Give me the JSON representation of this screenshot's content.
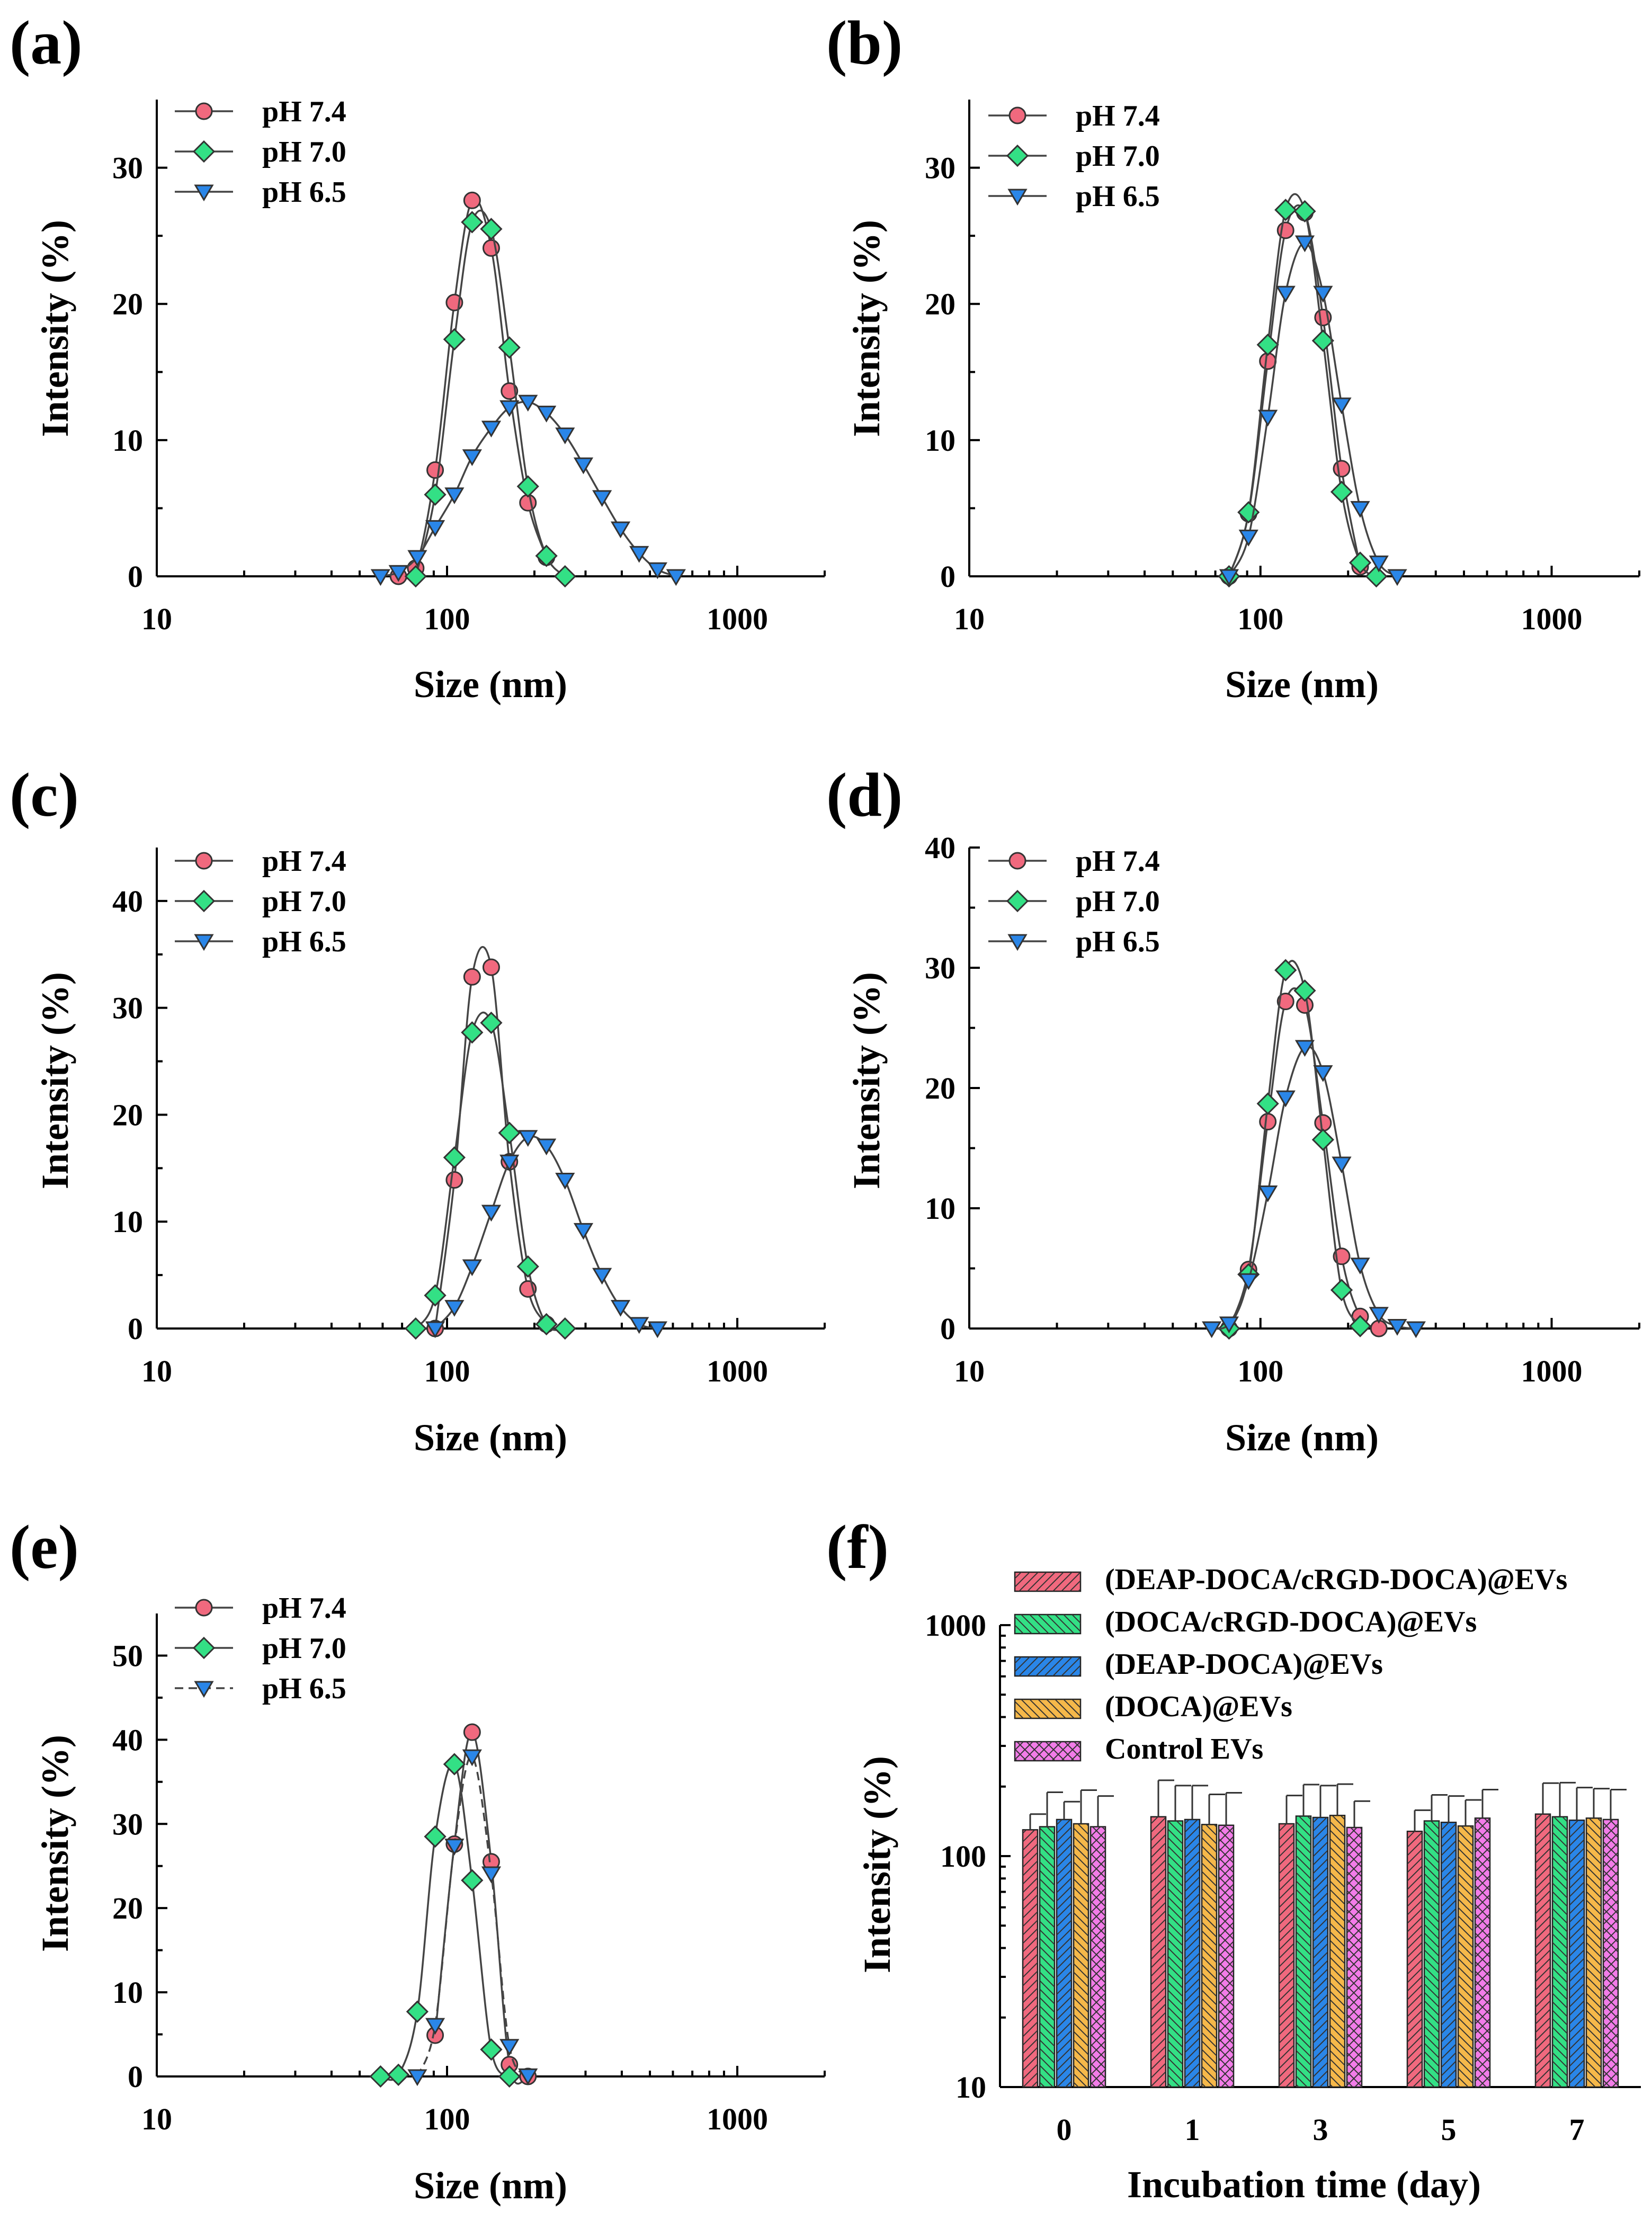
{
  "colors": {
    "pH 7.4": "#f0697e",
    "pH 7.0": "#33e085",
    "pH 6.5": "#2a86e8",
    "bars": [
      "#f0697e",
      "#33e085",
      "#2a86e8",
      "#f5b84a",
      "#f27ce8"
    ]
  },
  "chart_data": [
    {
      "panel": "(a)",
      "type": "line",
      "xscale": "log",
      "xlim": [
        10,
        2000
      ],
      "ylim": [
        0,
        35
      ],
      "xticks": [
        10,
        100,
        1000
      ],
      "xtick_labels": [
        "10",
        "100",
        "1000"
      ],
      "yticks": [
        0,
        10,
        20,
        30
      ],
      "ytick_labels": [
        "0",
        "10",
        "20",
        "30"
      ],
      "xlabel": "Size (nm)",
      "ylabel": "Intensity (%)",
      "series": [
        {
          "name": "pH 7.4",
          "marker": "circle",
          "x": [
            68,
            78,
            91,
            106,
            122,
            142,
            164,
            190,
            220
          ],
          "y": [
            0,
            0.6,
            7.8,
            20.1,
            27.6,
            24.1,
            13.6,
            5.4,
            1.4
          ]
        },
        {
          "name": "pH 7.0",
          "marker": "diamond",
          "x": [
            78,
            91,
            106,
            122,
            142,
            164,
            190,
            220,
            255
          ],
          "y": [
            0,
            6.0,
            17.4,
            26.0,
            25.5,
            16.8,
            6.6,
            1.5,
            0
          ]
        },
        {
          "name": "pH 6.5",
          "marker": "triangle-down",
          "x": [
            59,
            68,
            79,
            91,
            106,
            122,
            142,
            164,
            190,
            220,
            255,
            295,
            342,
            396,
            459,
            531,
            615
          ],
          "y": [
            0,
            0.3,
            1.4,
            3.6,
            6.0,
            8.8,
            10.9,
            12.4,
            12.8,
            12.0,
            10.4,
            8.2,
            5.8,
            3.5,
            1.7,
            0.5,
            0
          ]
        }
      ]
    },
    {
      "panel": "(b)",
      "type": "line",
      "xscale": "log",
      "xlim": [
        10,
        2000
      ],
      "ylim": [
        0,
        35
      ],
      "xticks": [
        10,
        100,
        1000
      ],
      "xtick_labels": [
        "10",
        "100",
        "1000"
      ],
      "yticks": [
        0,
        10,
        20,
        30
      ],
      "ytick_labels": [
        "0",
        "10",
        "20",
        "30"
      ],
      "xlabel": "Size (nm)",
      "ylabel": "Intensity (%)",
      "series": [
        {
          "name": "pH 7.4",
          "marker": "circle",
          "x": [
            78,
            91,
            106,
            122,
            142,
            164,
            190,
            220
          ],
          "y": [
            0,
            4.6,
            15.8,
            25.4,
            26.7,
            19.0,
            7.9,
            0.7
          ]
        },
        {
          "name": "pH 7.0",
          "marker": "diamond",
          "x": [
            78,
            91,
            106,
            122,
            142,
            164,
            190,
            220,
            250
          ],
          "y": [
            0,
            4.7,
            17.0,
            26.9,
            26.8,
            17.3,
            6.2,
            1.0,
            0
          ]
        },
        {
          "name": "pH 6.5",
          "marker": "triangle-down",
          "x": [
            78,
            91,
            106,
            122,
            142,
            164,
            190,
            220,
            255,
            295
          ],
          "y": [
            0,
            2.9,
            11.7,
            20.8,
            24.5,
            20.8,
            12.6,
            5.0,
            1.0,
            0
          ]
        }
      ]
    },
    {
      "panel": "(c)",
      "type": "line",
      "xscale": "log",
      "xlim": [
        10,
        2000
      ],
      "ylim": [
        0,
        45
      ],
      "xticks": [
        10,
        100,
        1000
      ],
      "xtick_labels": [
        "10",
        "100",
        "1000"
      ],
      "yticks": [
        0,
        10,
        20,
        30,
        40
      ],
      "ytick_labels": [
        "0",
        "10",
        "20",
        "30",
        "40"
      ],
      "xlabel": "Size (nm)",
      "ylabel": "Intensity (%)",
      "series": [
        {
          "name": "pH 7.4",
          "marker": "circle",
          "x": [
            91,
            106,
            122,
            142,
            164,
            190,
            220
          ],
          "y": [
            0,
            13.9,
            32.9,
            33.8,
            15.6,
            3.7,
            0.4
          ]
        },
        {
          "name": "pH 7.0",
          "marker": "diamond",
          "x": [
            78,
            91,
            106,
            122,
            142,
            164,
            190,
            220,
            255
          ],
          "y": [
            0,
            3.1,
            16.0,
            27.7,
            28.6,
            18.3,
            5.8,
            0.4,
            0
          ]
        },
        {
          "name": "pH 6.5",
          "marker": "triangle-down",
          "x": [
            91,
            106,
            122,
            142,
            164,
            190,
            220,
            255,
            295,
            342,
            396,
            459,
            531
          ],
          "y": [
            0,
            2.0,
            5.8,
            10.9,
            15.6,
            17.9,
            17.1,
            13.9,
            9.2,
            5.0,
            2.0,
            0.4,
            0
          ]
        }
      ]
    },
    {
      "panel": "(d)",
      "type": "line",
      "xscale": "log",
      "xlim": [
        10,
        2000
      ],
      "ylim": [
        0,
        40
      ],
      "xticks": [
        10,
        100,
        1000
      ],
      "xtick_labels": [
        "10",
        "100",
        "1000"
      ],
      "yticks": [
        0,
        10,
        20,
        30,
        40
      ],
      "ytick_labels": [
        "0",
        "10",
        "20",
        "30",
        "40"
      ],
      "xlabel": "Size (nm)",
      "ylabel": "Intensity (%)",
      "series": [
        {
          "name": "pH 7.4",
          "marker": "circle",
          "x": [
            78,
            91,
            106,
            122,
            142,
            164,
            190,
            220,
            255
          ],
          "y": [
            0,
            4.9,
            17.2,
            27.2,
            26.9,
            17.1,
            6.0,
            1.0,
            0
          ]
        },
        {
          "name": "pH 7.0",
          "marker": "diamond",
          "x": [
            78,
            91,
            106,
            122,
            142,
            164,
            190,
            220
          ],
          "y": [
            0,
            4.5,
            18.7,
            29.8,
            28.1,
            15.7,
            3.2,
            0.2
          ]
        },
        {
          "name": "pH 6.5",
          "marker": "triangle-down",
          "x": [
            68,
            78,
            91,
            106,
            122,
            142,
            164,
            190,
            220,
            255,
            295,
            342
          ],
          "y": [
            0,
            0.4,
            4.0,
            11.3,
            19.2,
            23.4,
            21.3,
            13.7,
            5.3,
            1.2,
            0.2,
            0
          ]
        }
      ]
    },
    {
      "panel": "(e)",
      "type": "line",
      "xscale": "log",
      "xlim": [
        10,
        2000
      ],
      "ylim": [
        0,
        55
      ],
      "xticks": [
        10,
        100,
        1000
      ],
      "xtick_labels": [
        "10",
        "100",
        "1000"
      ],
      "yticks": [
        0,
        10,
        20,
        30,
        40,
        50
      ],
      "ytick_labels": [
        "0",
        "10",
        "20",
        "30",
        "40",
        "50"
      ],
      "xlabel": "Size (nm)",
      "ylabel": "Intensity (%)",
      "series": [
        {
          "name": "pH 7.4",
          "marker": "circle",
          "x": [
            91,
            106,
            122,
            142,
            164,
            190
          ],
          "y": [
            4.9,
            27.6,
            40.9,
            25.5,
            1.4,
            0
          ]
        },
        {
          "name": "pH 7.0",
          "marker": "diamond",
          "x": [
            59,
            68,
            79,
            91,
            106,
            122,
            142,
            164
          ],
          "y": [
            0,
            0.2,
            7.7,
            28.5,
            37.1,
            23.3,
            3.2,
            0
          ]
        },
        {
          "name": "pH 6.5",
          "marker": "triangle-down",
          "dashed": true,
          "x": [
            79,
            91,
            106,
            122,
            142,
            164,
            190
          ],
          "y": [
            0,
            6.1,
            27.4,
            38.0,
            24.1,
            3.6,
            0.1
          ]
        }
      ]
    },
    {
      "panel": "(f)",
      "type": "bar",
      "yscale": "log",
      "ylim": [
        10,
        1000
      ],
      "yticks": [
        10,
        100,
        1000
      ],
      "ytick_labels": [
        "10",
        "100",
        "1000"
      ],
      "xlabel": "Incubation time (day)",
      "ylabel": "Intensity (%)",
      "categories": [
        "0",
        "1",
        "3",
        "5",
        "7"
      ],
      "series": [
        {
          "name": "(DEAP-DOCA/cRGD-DOCA)@EVs",
          "values": [
            130,
            148,
            138,
            128,
            152
          ],
          "errors": [
            22,
            65,
            45,
            30,
            55
          ]
        },
        {
          "name": "(DOCA/cRGD-DOCA)@EVs",
          "values": [
            134,
            142,
            149,
            142,
            148
          ],
          "errors": [
            55,
            60,
            55,
            42,
            60
          ]
        },
        {
          "name": "(DEAP-DOCA)@EVs",
          "values": [
            144,
            144,
            147,
            140,
            143
          ],
          "errors": [
            28,
            58,
            55,
            42,
            55
          ]
        },
        {
          "name": "(DOCA)@EVs",
          "values": [
            138,
            137,
            150,
            135,
            146
          ],
          "errors": [
            55,
            48,
            55,
            40,
            50
          ]
        },
        {
          "name": "Control EVs",
          "values": [
            134,
            136,
            133,
            146,
            144
          ],
          "errors": [
            48,
            52,
            40,
            48,
            50
          ]
        }
      ]
    }
  ]
}
